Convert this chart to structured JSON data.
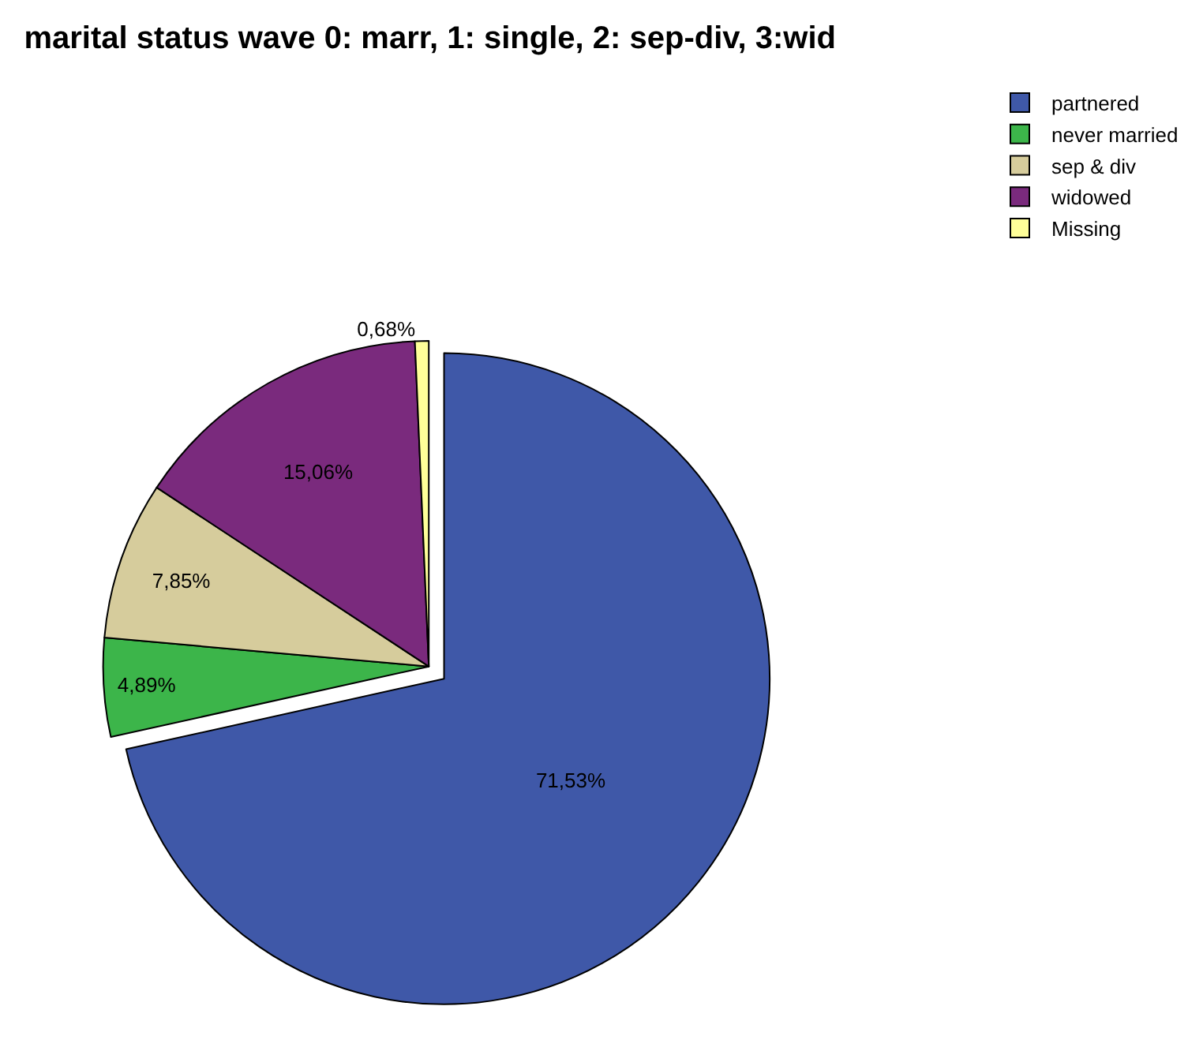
{
  "chart_data": {
    "type": "pie",
    "title": "marital status wave 0: marr, 1: single, 2: sep-div, 3:wid",
    "categories": [
      "partnered",
      "never married",
      "sep & div",
      "widowed",
      "Missing"
    ],
    "values": [
      71.53,
      4.89,
      7.85,
      15.06,
      0.68
    ],
    "colors": [
      "#3f58a8",
      "#3cb54a",
      "#d6cc9c",
      "#7a2a7d",
      "#ffff99"
    ],
    "value_labels": [
      "71,53%",
      "4,89%",
      "7,85%",
      "15,06%",
      "0,68%"
    ],
    "legend": "top right"
  }
}
